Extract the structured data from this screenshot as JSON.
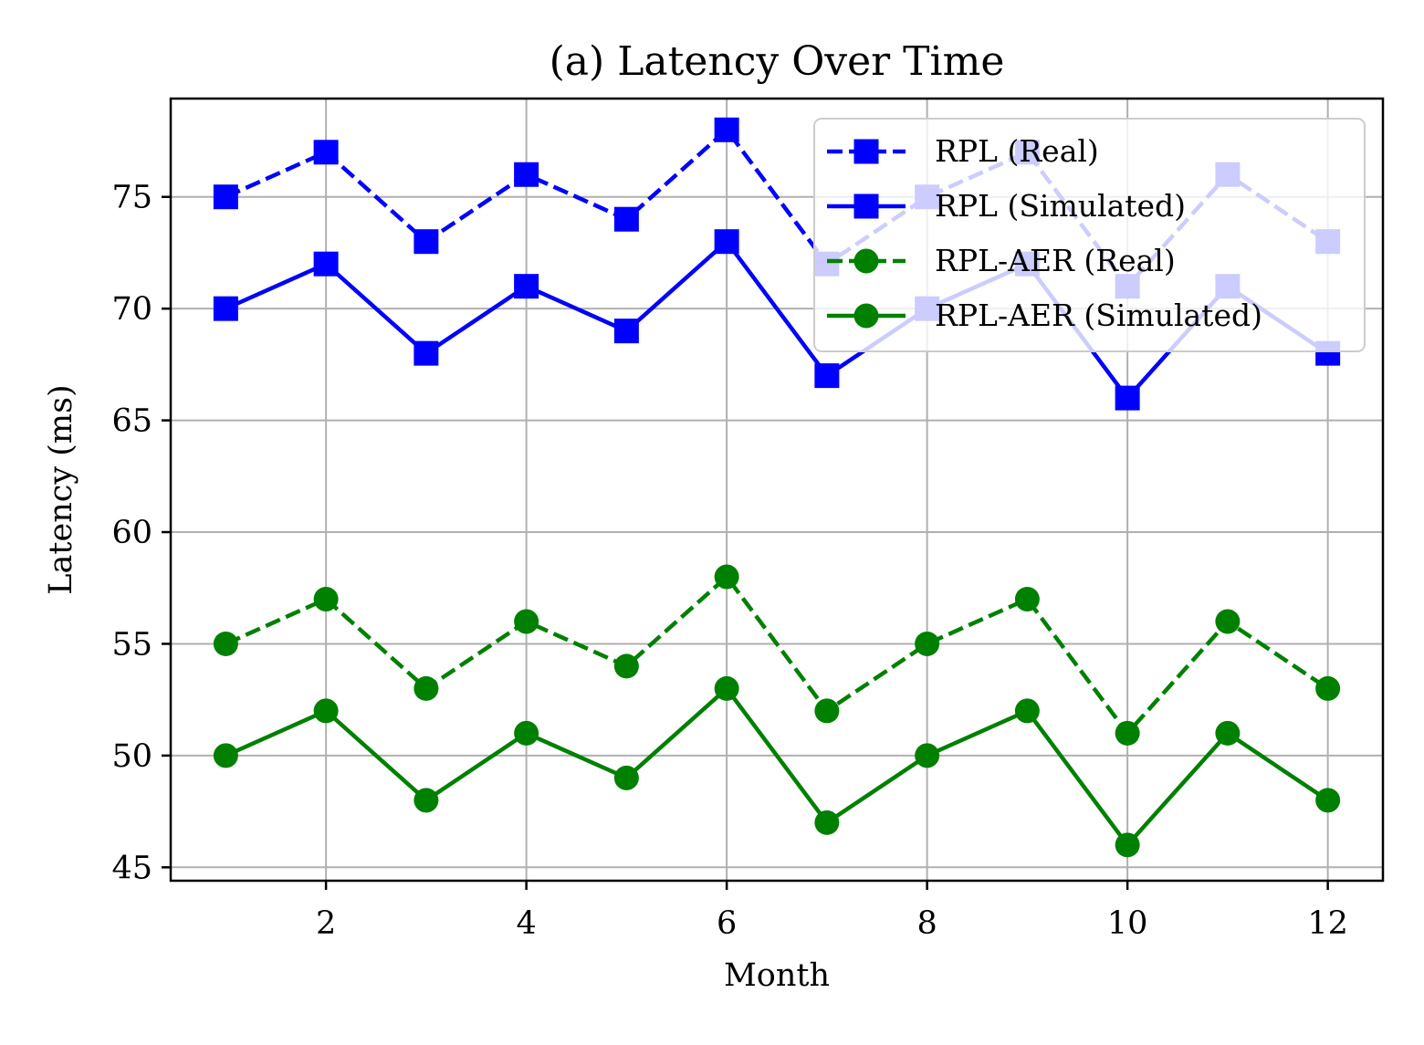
{
  "chart_data": {
    "type": "line",
    "title": "(a) Latency Over Time",
    "xlabel": "Month",
    "ylabel": "Latency (ms)",
    "x": [
      1,
      2,
      3,
      4,
      5,
      6,
      7,
      8,
      9,
      10,
      11,
      12
    ],
    "xlim": [
      0.45,
      12.55
    ],
    "ylim": [
      44.4,
      79.4
    ],
    "xticks": [
      2,
      4,
      6,
      8,
      10,
      12
    ],
    "yticks": [
      45,
      50,
      55,
      60,
      65,
      70,
      75
    ],
    "grid": true,
    "legend_position": "top-right",
    "series": [
      {
        "name": "RPL (Real)",
        "values": [
          75,
          77,
          73,
          76,
          74,
          78,
          72,
          75,
          77,
          71,
          76,
          73
        ],
        "color": "#0000ff",
        "linestyle": "dashed",
        "marker": "square"
      },
      {
        "name": "RPL (Simulated)",
        "values": [
          70,
          72,
          68,
          71,
          69,
          73,
          67,
          70,
          72,
          66,
          71,
          68
        ],
        "color": "#0000ff",
        "linestyle": "solid",
        "marker": "square"
      },
      {
        "name": "RPL-AER (Real)",
        "values": [
          55,
          57,
          53,
          56,
          54,
          58,
          52,
          55,
          57,
          51,
          56,
          53
        ],
        "color": "#008000",
        "linestyle": "dashed",
        "marker": "circle"
      },
      {
        "name": "RPL-AER (Simulated)",
        "values": [
          50,
          52,
          48,
          51,
          49,
          53,
          47,
          50,
          52,
          46,
          51,
          48
        ],
        "color": "#008000",
        "linestyle": "solid",
        "marker": "circle"
      }
    ]
  }
}
